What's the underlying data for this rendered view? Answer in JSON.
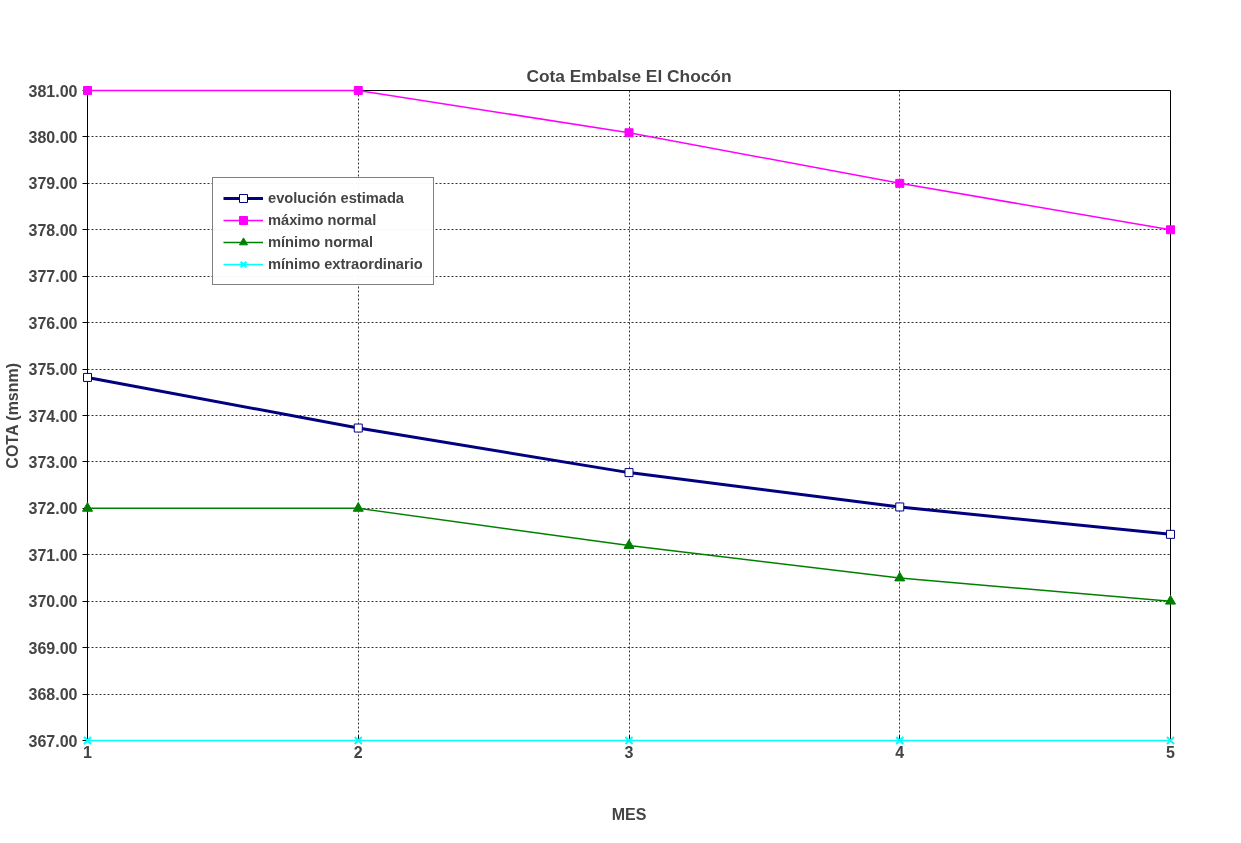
{
  "chart_data": {
    "type": "line",
    "title": "Cota Embalse El Chocón",
    "xlabel": "MES",
    "ylabel": "COTA (msnm)",
    "x": [
      1,
      2,
      3,
      4,
      5
    ],
    "series": [
      {
        "name": "evolución estimada",
        "color": "#000080",
        "marker": "square",
        "values": [
          374.82,
          373.73,
          372.77,
          372.03,
          371.44
        ]
      },
      {
        "name": "máximo normal",
        "color": "#ff00ff",
        "marker": "square",
        "values": [
          381.0,
          381.0,
          380.09,
          379.0,
          378.0
        ]
      },
      {
        "name": "mínimo normal",
        "color": "#008000",
        "marker": "triangle",
        "values": [
          372.0,
          372.0,
          371.2,
          370.5,
          370.0
        ]
      },
      {
        "name": "mínimo extraordinario",
        "color": "#00ffff",
        "marker": "cross",
        "values": [
          367.0,
          367.0,
          367.0,
          367.0,
          367.0
        ]
      }
    ],
    "xlim": [
      1,
      5
    ],
    "xticks": [
      1,
      2,
      3,
      4,
      5
    ],
    "ylim": [
      367,
      381
    ],
    "yticks": [
      {
        "value": 367,
        "label": "367.00"
      },
      {
        "value": 368,
        "label": "368.00"
      },
      {
        "value": 369,
        "label": "369.00"
      },
      {
        "value": 370,
        "label": "370.00"
      },
      {
        "value": 371,
        "label": "371.00"
      },
      {
        "value": 372,
        "label": "372.00"
      },
      {
        "value": 373,
        "label": "373.00"
      },
      {
        "value": 374,
        "label": "374.00"
      },
      {
        "value": 375,
        "label": "375.00"
      },
      {
        "value": 376,
        "label": "376.00"
      },
      {
        "value": 377,
        "label": "377.00"
      },
      {
        "value": 378,
        "label": "378.00"
      },
      {
        "value": 379,
        "label": "379.00"
      },
      {
        "value": 380,
        "label": "380.00"
      },
      {
        "value": 381,
        "label": "381.00"
      }
    ],
    "grid": true,
    "legend": "top left",
    "line_style": "solid"
  }
}
